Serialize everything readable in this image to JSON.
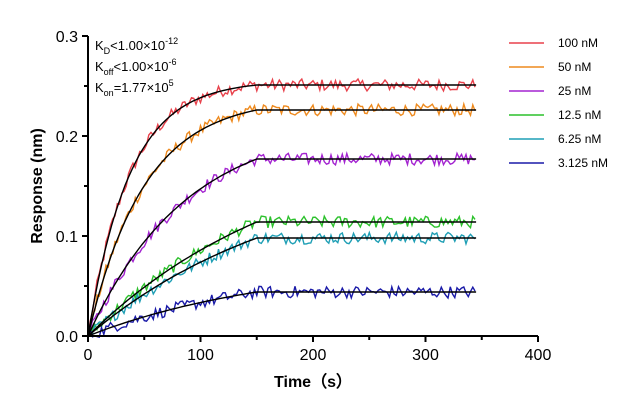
{
  "chart_data": {
    "type": "line",
    "xlabel": "Time（s）",
    "ylabel": "Response (nm)",
    "xlim": [
      0,
      400
    ],
    "ylim": [
      0,
      0.3
    ],
    "xticks": [
      "0",
      "100",
      "200",
      "300",
      "400"
    ],
    "yticks": [
      "0.0",
      "0.1",
      "0.2",
      "0.3"
    ],
    "grid": false,
    "legend_position": "right",
    "annotations": [
      {
        "main": "K",
        "sub": "D",
        "rest": "<1.00×10",
        "sup": "-12"
      },
      {
        "main": "K",
        "sub": "off",
        "rest": "<1.00×10",
        "sup": "-6"
      },
      {
        "main": "K",
        "sub": "on",
        "rest": "=1.77×10",
        "sup": "5"
      }
    ],
    "association_end": 150,
    "x_end": 345,
    "series": [
      {
        "name": "100 nM",
        "color": "#e8414b",
        "plateau": 0.251,
        "k": 0.027
      },
      {
        "name": "50 nM",
        "color": "#ee8a1e",
        "plateau": 0.226,
        "k": 0.02
      },
      {
        "name": "25 nM",
        "color": "#a323d0",
        "plateau": 0.177,
        "k": 0.0115
      },
      {
        "name": "12.5 nM",
        "color": "#2bc12b",
        "plateau": 0.114,
        "k": 0.0055
      },
      {
        "name": "6.25 nM",
        "color": "#1f9fb5",
        "plateau": 0.098,
        "k": 0.0055
      },
      {
        "name": "3.125 nM",
        "color": "#1a1aa8",
        "plateau": 0.044,
        "k": 0.006
      }
    ],
    "fit_color": "#000000"
  }
}
